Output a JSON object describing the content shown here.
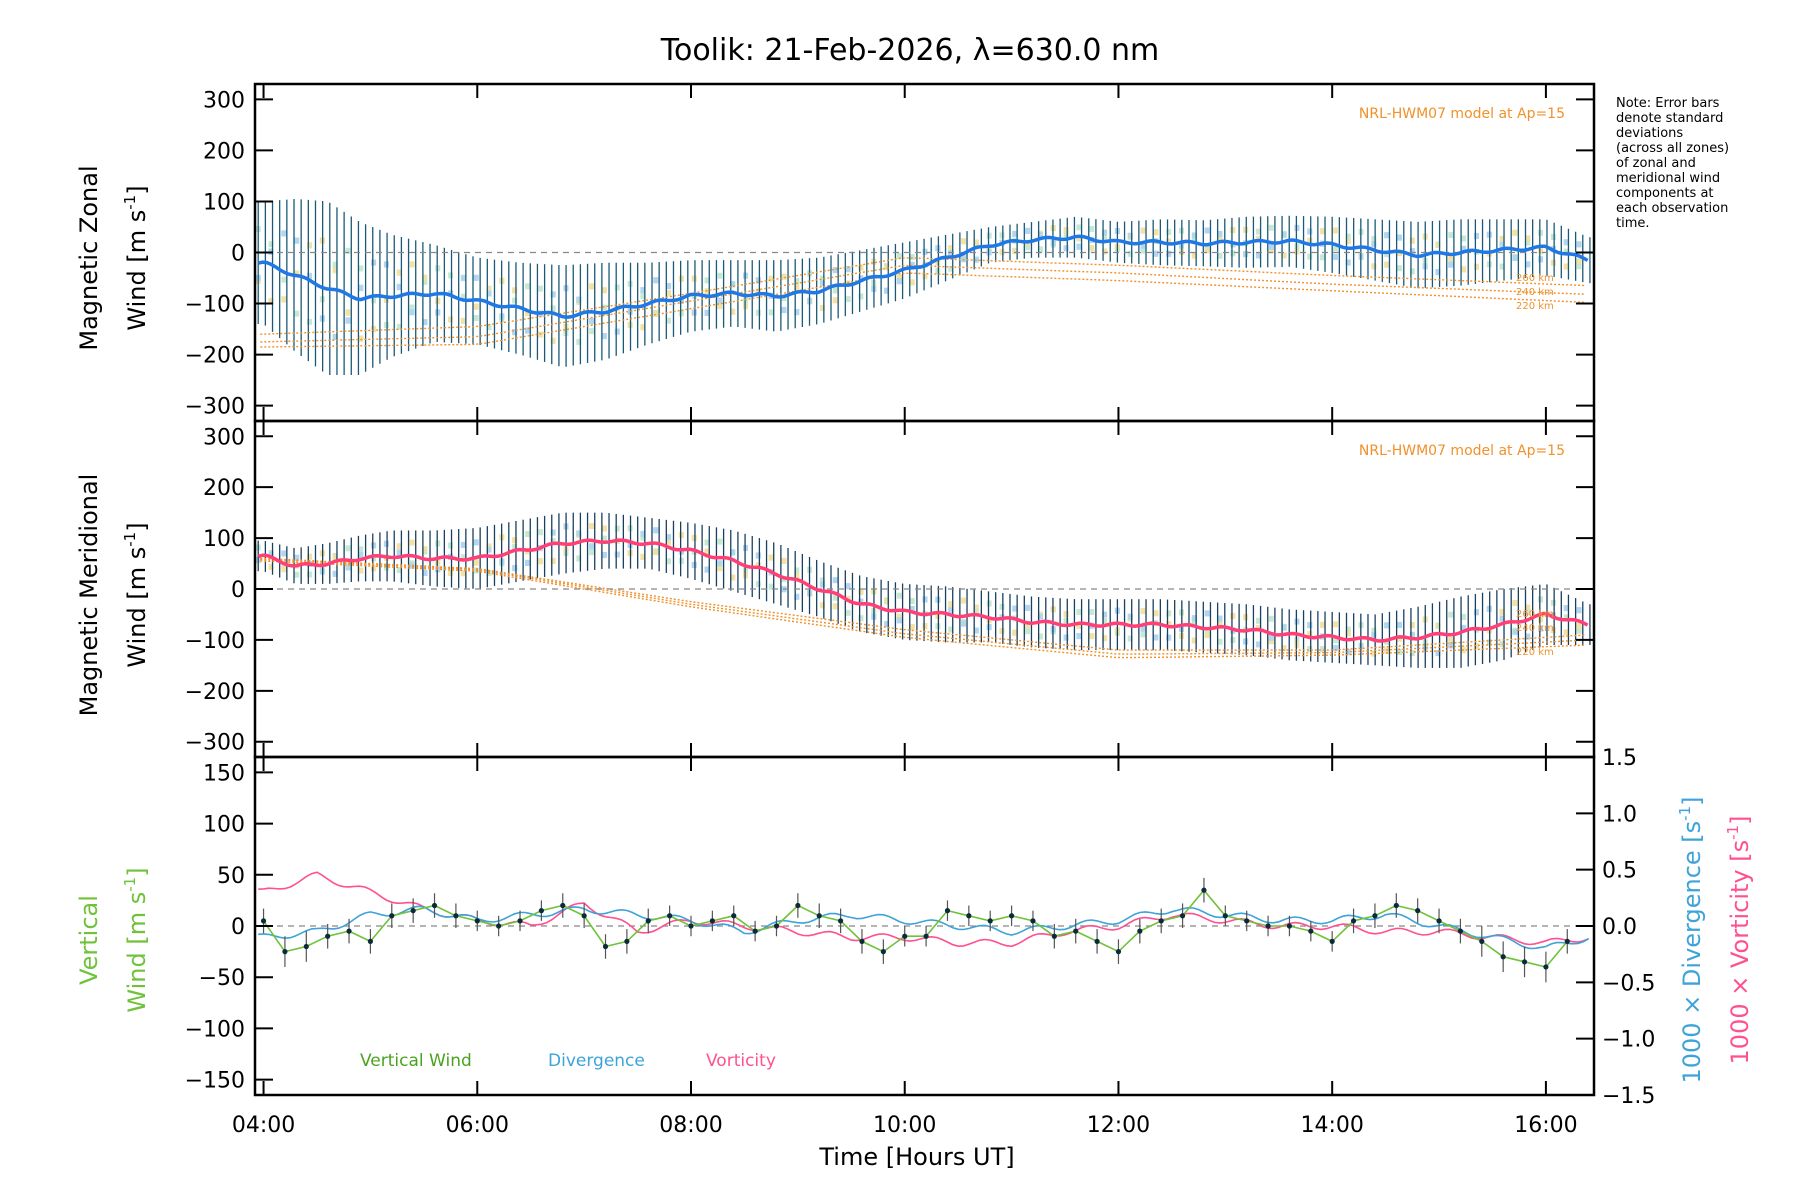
{
  "chart_title": "Toolik: 21-Feb-2026, λ=630.0 nm",
  "side_note": "Note: Error bars\ndenote standard\ndeviations\n(across all zones)\nof zonal and\nmeridional wind\ncomponents at\neach observation\ntime.",
  "colors": {
    "zonal_line": "#1f78e6",
    "meridional_line": "#ff3f75",
    "errorbar_zonal": "#1a5a78",
    "errorbar_meridional": "#1a4060",
    "model": "#f0912a",
    "vertical": "#6fc23a",
    "divergence": "#3ea3d8",
    "vorticity": "#ff5090",
    "zones_band": [
      "#f7d5a8",
      "#c9c2f0",
      "#b8e4c8",
      "#f3e3a0",
      "#a8d8f0"
    ]
  },
  "chart_data": [
    {
      "type": "line",
      "panel": "zonal",
      "ylabel_line1": "Magnetic Zonal",
      "ylabel_line2": "Wind [m s",
      "ylabel_sup": "-1",
      "ylabel_close": "]",
      "ylim": [
        -330,
        330
      ],
      "yticks": [
        "300",
        "200",
        "100",
        "0",
        "−100",
        "−200",
        "−300"
      ],
      "ytick_values": [
        300,
        200,
        100,
        0,
        -100,
        -200,
        -300
      ],
      "model_note": "NRL-HWM07 model at Ap=15",
      "model_altitudes": [
        "260 km",
        "240 km",
        "220 km"
      ],
      "series": [
        {
          "name": "Zonal wind",
          "x": [
            4.0,
            4.3,
            4.6,
            4.9,
            5.2,
            5.6,
            6.0,
            6.4,
            6.8,
            7.2,
            7.6,
            8.0,
            8.4,
            8.8,
            9.2,
            9.6,
            10.0,
            10.4,
            10.8,
            11.2,
            11.6,
            12.0,
            12.4,
            12.8,
            13.2,
            13.6,
            14.0,
            14.4,
            14.8,
            15.2,
            15.6,
            16.0,
            16.4
          ],
          "values": [
            -20,
            -45,
            -70,
            -90,
            -85,
            -80,
            -95,
            -110,
            -125,
            -115,
            -100,
            -85,
            -80,
            -85,
            -75,
            -55,
            -35,
            -10,
            15,
            25,
            30,
            20,
            20,
            18,
            20,
            22,
            15,
            5,
            -5,
            0,
            5,
            10,
            -15
          ],
          "std": [
            120,
            150,
            170,
            150,
            120,
            95,
            85,
            90,
            100,
            95,
            80,
            70,
            65,
            70,
            65,
            60,
            55,
            45,
            35,
            35,
            40,
            40,
            45,
            45,
            50,
            50,
            55,
            60,
            65,
            65,
            60,
            55,
            45
          ]
        },
        {
          "name": "HWM07 260 km",
          "x": [
            4.0,
            6.0,
            8.0,
            10.0,
            12.0,
            14.0,
            16.4
          ],
          "values": [
            -160,
            -145,
            -80,
            -10,
            -25,
            -45,
            -65
          ]
        },
        {
          "name": "HWM07 240 km",
          "x": [
            4.0,
            6.0,
            8.0,
            10.0,
            12.0,
            14.0,
            16.4
          ],
          "values": [
            -175,
            -165,
            -95,
            -25,
            -40,
            -62,
            -82
          ]
        },
        {
          "name": "HWM07 220 km",
          "x": [
            4.0,
            6.0,
            8.0,
            10.0,
            12.0,
            14.0,
            16.4
          ],
          "values": [
            -185,
            -180,
            -110,
            -40,
            -55,
            -75,
            -98
          ]
        }
      ]
    },
    {
      "type": "line",
      "panel": "meridional",
      "ylabel_line1": "Magnetic Meridional",
      "ylabel_line2": "Wind [m s",
      "ylabel_sup": "-1",
      "ylabel_close": "]",
      "ylim": [
        -330,
        330
      ],
      "yticks": [
        "300",
        "200",
        "100",
        "0",
        "−100",
        "−200",
        "−300"
      ],
      "ytick_values": [
        300,
        200,
        100,
        0,
        -100,
        -200,
        -300
      ],
      "model_note": "NRL-HWM07 model at Ap=15",
      "model_altitudes": [
        "260 km",
        "240 km",
        "220 km"
      ],
      "series": [
        {
          "name": "Meridional wind",
          "x": [
            4.0,
            4.3,
            4.6,
            4.9,
            5.2,
            5.6,
            6.0,
            6.4,
            6.8,
            7.2,
            7.6,
            8.0,
            8.4,
            8.8,
            9.2,
            9.6,
            10.0,
            10.4,
            10.8,
            11.2,
            11.6,
            12.0,
            12.4,
            12.8,
            13.2,
            13.6,
            14.0,
            14.4,
            14.8,
            15.2,
            15.6,
            16.0,
            16.4
          ],
          "values": [
            65,
            45,
            50,
            60,
            65,
            60,
            60,
            75,
            90,
            95,
            90,
            75,
            55,
            30,
            0,
            -30,
            -45,
            -50,
            -55,
            -65,
            -70,
            -70,
            -70,
            -75,
            -80,
            -90,
            -95,
            -100,
            -95,
            -85,
            -70,
            -50,
            -70
          ],
          "std": [
            30,
            35,
            40,
            45,
            50,
            55,
            60,
            60,
            60,
            55,
            50,
            55,
            60,
            60,
            55,
            55,
            55,
            55,
            50,
            50,
            50,
            50,
            50,
            50,
            50,
            50,
            50,
            50,
            60,
            70,
            70,
            60,
            40
          ]
        },
        {
          "name": "HWM07 260 km",
          "x": [
            4.0,
            6.0,
            8.0,
            10.0,
            12.0,
            14.0,
            16.4
          ],
          "values": [
            60,
            40,
            -25,
            -80,
            -120,
            -120,
            -90
          ]
        },
        {
          "name": "HWM07 240 km",
          "x": [
            4.0,
            6.0,
            8.0,
            10.0,
            12.0,
            14.0,
            16.4
          ],
          "values": [
            58,
            38,
            -30,
            -88,
            -128,
            -125,
            -100
          ]
        },
        {
          "name": "HWM07 220 km",
          "x": [
            4.0,
            6.0,
            8.0,
            10.0,
            12.0,
            14.0,
            16.4
          ],
          "values": [
            55,
            35,
            -35,
            -95,
            -135,
            -130,
            -110
          ]
        }
      ]
    },
    {
      "type": "line",
      "panel": "vertical",
      "ylabel_line1": "Vertical",
      "ylabel_line2": "Wind [m s",
      "ylabel_sup": "-1",
      "ylabel_close": "]",
      "ylim": [
        -165,
        165
      ],
      "yticks": [
        "150",
        "100",
        "50",
        "0",
        "−50",
        "−100",
        "−150"
      ],
      "ytick_values": [
        150,
        100,
        50,
        0,
        -50,
        -100,
        -150
      ],
      "y2label_div": "1000 × Divergence [s",
      "y2label_vor": "1000 × Vorticity [s",
      "y2label_sup": "-1",
      "y2label_close": "]",
      "y2lim": [
        -1.5,
        1.5
      ],
      "y2ticks": [
        "1.5",
        "1.0",
        "0.5",
        "0.0",
        "−0.5",
        "−1.0",
        "−1.5"
      ],
      "y2tick_values": [
        1.5,
        1.0,
        0.5,
        0.0,
        -0.5,
        -1.0,
        -1.5
      ],
      "legend": [
        "Vertical Wind",
        "Divergence",
        "Vorticity"
      ],
      "series": [
        {
          "name": "Vertical Wind",
          "x": [
            4.0,
            4.2,
            4.4,
            4.6,
            4.8,
            5.0,
            5.2,
            5.4,
            5.6,
            5.8,
            6.0,
            6.2,
            6.4,
            6.6,
            6.8,
            7.0,
            7.2,
            7.4,
            7.6,
            7.8,
            8.0,
            8.2,
            8.4,
            8.6,
            8.8,
            9.0,
            9.2,
            9.4,
            9.6,
            9.8,
            10.0,
            10.2,
            10.4,
            10.6,
            10.8,
            11.0,
            11.2,
            11.4,
            11.6,
            11.8,
            12.0,
            12.2,
            12.4,
            12.6,
            12.8,
            13.0,
            13.2,
            13.4,
            13.6,
            13.8,
            14.0,
            14.2,
            14.4,
            14.6,
            14.8,
            15.0,
            15.2,
            15.4,
            15.6,
            15.8,
            16.0,
            16.2
          ],
          "values": [
            5,
            -25,
            -20,
            -10,
            -5,
            -15,
            10,
            15,
            20,
            10,
            5,
            0,
            5,
            15,
            20,
            10,
            -20,
            -15,
            5,
            10,
            0,
            5,
            10,
            -5,
            0,
            20,
            10,
            5,
            -15,
            -25,
            -10,
            -10,
            15,
            10,
            5,
            10,
            5,
            -10,
            -5,
            -15,
            -25,
            -5,
            5,
            10,
            35,
            10,
            5,
            0,
            0,
            -5,
            -15,
            5,
            10,
            20,
            15,
            5,
            -5,
            -15,
            -30,
            -35,
            -40,
            -15
          ],
          "std": [
            12,
            15,
            15,
            12,
            12,
            12,
            12,
            12,
            12,
            12,
            10,
            10,
            10,
            10,
            12,
            12,
            12,
            12,
            12,
            10,
            10,
            10,
            10,
            10,
            10,
            12,
            12,
            12,
            12,
            12,
            10,
            10,
            10,
            10,
            10,
            10,
            10,
            12,
            12,
            12,
            12,
            12,
            12,
            12,
            12,
            10,
            10,
            10,
            10,
            10,
            10,
            12,
            12,
            12,
            12,
            12,
            12,
            15,
            15,
            15,
            15,
            12
          ]
        },
        {
          "name": "Divergence",
          "x": [
            4.0,
            4.5,
            5.0,
            5.5,
            6.0,
            6.5,
            7.0,
            7.5,
            8.0,
            8.5,
            9.0,
            9.5,
            10.0,
            10.5,
            11.0,
            11.5,
            12.0,
            12.5,
            13.0,
            13.5,
            14.0,
            14.5,
            15.0,
            15.5,
            16.0,
            16.4
          ],
          "values": [
            -0.1,
            -0.05,
            0.1,
            0.15,
            0.05,
            0.1,
            0.15,
            0.1,
            0.05,
            -0.05,
            0.05,
            0.1,
            0.05,
            0.0,
            -0.05,
            0.0,
            0.05,
            0.15,
            0.1,
            0.05,
            0.05,
            0.1,
            0.0,
            -0.1,
            -0.2,
            -0.1
          ]
        },
        {
          "name": "Vorticity",
          "x": [
            4.0,
            4.5,
            5.0,
            5.5,
            6.0,
            6.5,
            7.0,
            7.5,
            8.0,
            8.5,
            9.0,
            9.5,
            10.0,
            10.5,
            11.0,
            11.5,
            12.0,
            12.5,
            13.0,
            13.5,
            14.0,
            14.5,
            15.0,
            15.5,
            16.0,
            16.4
          ],
          "values": [
            0.3,
            0.45,
            0.3,
            0.15,
            0.05,
            0.0,
            0.2,
            -0.05,
            0.05,
            0.0,
            -0.05,
            -0.1,
            -0.1,
            -0.15,
            -0.15,
            -0.05,
            0.0,
            0.1,
            0.05,
            0.0,
            0.0,
            -0.05,
            -0.05,
            -0.1,
            -0.15,
            -0.1
          ]
        }
      ]
    }
  ],
  "x_axis": {
    "xlim": [
      3.92,
      16.45
    ],
    "tick_values": [
      4,
      6,
      8,
      10,
      12,
      14,
      16
    ],
    "tick_labels": [
      "04:00",
      "06:00",
      "08:00",
      "10:00",
      "12:00",
      "14:00",
      "16:00"
    ],
    "xlabel": "Time [Hours UT]"
  }
}
